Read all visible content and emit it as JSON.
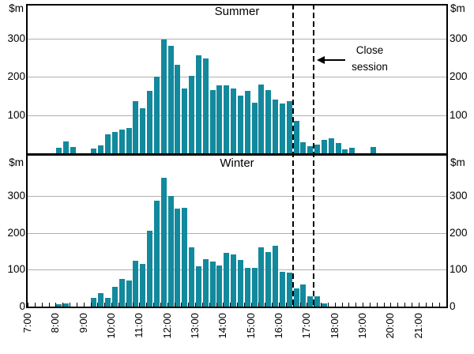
{
  "chart": {
    "unit": "$m",
    "y_tick_labels": [
      "100",
      "200",
      "300"
    ],
    "y_zero_label": "0",
    "x_tick_labels": [
      "7:00",
      "8:00",
      "9:00",
      "10:00",
      "11:00",
      "12:00",
      "13:00",
      "14:00",
      "15:00",
      "16:00",
      "17:00",
      "18:00",
      "19:00",
      "20:00",
      "21:00"
    ],
    "panels": [
      {
        "title": "Summer"
      },
      {
        "title": "Winter"
      }
    ],
    "annotation": {
      "line1": "Close",
      "line2": "session"
    },
    "colors": {
      "bar": "#12899C",
      "grid": "#b0b0b0",
      "dashed_line": "#000000",
      "text": "#000000"
    }
  },
  "chart_data": [
    {
      "type": "bar",
      "title": "Summer",
      "ylabel": "$m",
      "yticks": [
        0,
        100,
        200,
        300
      ],
      "ylim": [
        0,
        390
      ],
      "x_start": "7:00",
      "x_end": "22:00",
      "interval_minutes": 15,
      "dashed_lines_at": [
        "16:30",
        "17:15"
      ],
      "annotation": "Close session",
      "x": [
        "7:00",
        "7:15",
        "7:30",
        "7:45",
        "8:00",
        "8:15",
        "8:30",
        "8:45",
        "9:00",
        "9:15",
        "9:30",
        "9:45",
        "10:00",
        "10:15",
        "10:30",
        "10:45",
        "11:00",
        "11:15",
        "11:30",
        "11:45",
        "12:00",
        "12:15",
        "12:30",
        "12:45",
        "13:00",
        "13:15",
        "13:30",
        "13:45",
        "14:00",
        "14:15",
        "14:30",
        "14:45",
        "15:00",
        "15:15",
        "15:30",
        "15:45",
        "16:00",
        "16:15",
        "16:30",
        "16:45",
        "17:00",
        "17:15",
        "17:30",
        "17:45",
        "18:00",
        "18:15",
        "18:30",
        "18:45",
        "19:00",
        "19:15",
        "19:30",
        "19:45",
        "20:00",
        "20:15",
        "20:30",
        "20:45",
        "21:00",
        "21:15",
        "21:30",
        "21:45"
      ],
      "values": [
        0,
        0,
        0,
        0,
        15,
        31,
        17,
        0,
        0,
        12,
        21,
        50,
        57,
        63,
        66,
        136,
        118,
        163,
        201,
        299,
        281,
        232,
        169,
        203,
        256,
        248,
        166,
        178,
        178,
        169,
        152,
        163,
        132,
        180,
        166,
        141,
        131,
        136,
        84,
        29,
        19,
        23,
        36,
        40,
        26,
        10,
        14,
        0,
        0,
        16,
        0,
        0,
        0,
        0,
        0,
        0,
        0,
        0,
        0,
        0
      ]
    },
    {
      "type": "bar",
      "title": "Winter",
      "ylabel": "$m",
      "yticks": [
        0,
        100,
        200,
        300
      ],
      "ylim": [
        0,
        410
      ],
      "x_start": "7:00",
      "x_end": "22:00",
      "interval_minutes": 15,
      "dashed_lines_at": [
        "16:30",
        "17:15"
      ],
      "annotation": "Close session",
      "x": [
        "7:00",
        "7:15",
        "7:30",
        "7:45",
        "8:00",
        "8:15",
        "8:30",
        "8:45",
        "9:00",
        "9:15",
        "9:30",
        "9:45",
        "10:00",
        "10:15",
        "10:30",
        "10:45",
        "11:00",
        "11:15",
        "11:30",
        "11:45",
        "12:00",
        "12:15",
        "12:30",
        "12:45",
        "13:00",
        "13:15",
        "13:30",
        "13:45",
        "14:00",
        "14:15",
        "14:30",
        "14:45",
        "15:00",
        "15:15",
        "15:30",
        "15:45",
        "16:00",
        "16:15",
        "16:30",
        "16:45",
        "17:00",
        "17:15",
        "17:30",
        "17:45",
        "18:00",
        "18:15",
        "18:30",
        "18:45",
        "19:00",
        "19:15",
        "19:30",
        "19:45",
        "20:00",
        "20:15",
        "20:30",
        "20:45",
        "21:00",
        "21:15",
        "21:30",
        "21:45"
      ],
      "values": [
        0,
        0,
        0,
        0,
        6,
        8,
        0,
        0,
        0,
        24,
        37,
        24,
        54,
        76,
        71,
        124,
        115,
        205,
        288,
        350,
        300,
        266,
        268,
        160,
        110,
        128,
        122,
        112,
        145,
        142,
        126,
        105,
        104,
        160,
        148,
        165,
        95,
        93,
        50,
        61,
        29,
        27,
        8,
        0,
        0,
        0,
        0,
        0,
        0,
        0,
        0,
        0,
        0,
        0,
        0,
        0,
        0,
        0,
        0,
        0
      ]
    }
  ]
}
